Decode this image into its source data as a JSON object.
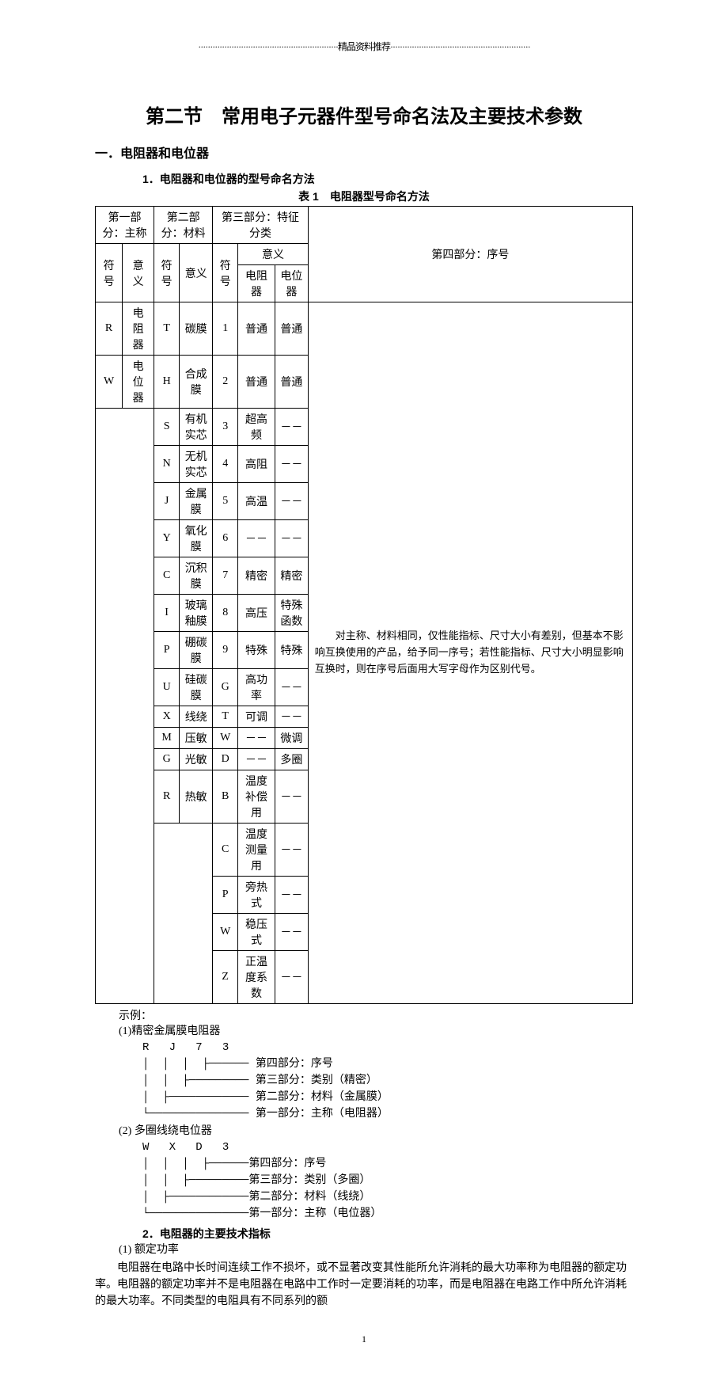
{
  "header_line": "···························································精品资料推荐···························································",
  "section_title": "第二节　常用电子元器件型号命名法及主要技术参数",
  "sub_heading": "一．电阻器和电位器",
  "numbered_heading_1": "1．电阻器和电位器的型号命名方法",
  "table_caption": "表 1　电阻器型号命名方法",
  "col_headers": {
    "part1": "第一部分：主称",
    "part2": "第二部分：材料",
    "part3": "第三部分：特征分类",
    "part4": "第四部分：序号",
    "symbol": "符号",
    "meaning": "意义",
    "meaning_sub": "意义",
    "resistor": "电阻器",
    "potentiometer": "电位器"
  },
  "part1_rows": [
    {
      "sym": "R",
      "mean": "电阻器"
    },
    {
      "sym": "W",
      "mean": "电位器"
    }
  ],
  "part2_rows": [
    {
      "sym": "T",
      "mean": "碳膜"
    },
    {
      "sym": "H",
      "mean": "合成膜"
    },
    {
      "sym": "S",
      "mean": "有机实芯"
    },
    {
      "sym": "N",
      "mean": "无机实芯"
    },
    {
      "sym": "J",
      "mean": "金属膜"
    },
    {
      "sym": "Y",
      "mean": "氧化膜"
    },
    {
      "sym": "C",
      "mean": "沉积膜"
    },
    {
      "sym": "I",
      "mean": "玻璃釉膜"
    },
    {
      "sym": "P",
      "mean": "硼碳膜"
    },
    {
      "sym": "U",
      "mean": "硅碳膜"
    },
    {
      "sym": "X",
      "mean": "线绕"
    },
    {
      "sym": "M",
      "mean": "压敏"
    },
    {
      "sym": "G",
      "mean": "光敏"
    },
    {
      "sym": "R",
      "mean": "热敏"
    }
  ],
  "part3_rows": [
    {
      "sym": "1",
      "res": "普通",
      "pot": "普通"
    },
    {
      "sym": "2",
      "res": "普通",
      "pot": "普通"
    },
    {
      "sym": "3",
      "res": "超高频",
      "pot": "－－"
    },
    {
      "sym": "4",
      "res": "高阻",
      "pot": "－－"
    },
    {
      "sym": "5",
      "res": "高温",
      "pot": "－－"
    },
    {
      "sym": "6",
      "res": "－－",
      "pot": "－－"
    },
    {
      "sym": "7",
      "res": "精密",
      "pot": "精密"
    },
    {
      "sym": "8",
      "res": "高压",
      "pot": "特殊函数"
    },
    {
      "sym": "9",
      "res": "特殊",
      "pot": "特殊"
    },
    {
      "sym": "G",
      "res": "高功率",
      "pot": "－－"
    },
    {
      "sym": "T",
      "res": "可调",
      "pot": "－－"
    },
    {
      "sym": "W",
      "res": "－－",
      "pot": "微调"
    },
    {
      "sym": "D",
      "res": "－－",
      "pot": "多圈"
    },
    {
      "sym": "B",
      "res": "温度补偿用",
      "pot": "－－"
    },
    {
      "sym": "C",
      "res": "温度测量用",
      "pot": "－－"
    },
    {
      "sym": "P",
      "res": "旁热式",
      "pot": "－－"
    },
    {
      "sym": "W",
      "res": "稳压式",
      "pot": "－－"
    },
    {
      "sym": "Z",
      "res": "正温度系数",
      "pot": "－－"
    }
  ],
  "part4_text": "　　对主称、材料相同，仅性能指标、尺寸大小有差别，但基本不影响互换使用的产品，给予同一序号；若性能指标、尺寸大小明显影响互换时，则在序号后面用大写字母作为区别代号。",
  "example_label": "示例：",
  "example1_title": "(1)精密金属膜电阻器",
  "example1_diagram": "R   J   7   3\n│  │  │  ├────── 第四部分：序号\n│  │  ├───────── 第三部分：类别（精密）\n│  ├──────────── 第二部分：材料（金属膜）\n└─────────────── 第一部分：主称（电阻器）",
  "example2_title": "(2) 多圈线绕电位器",
  "example2_diagram": "W   X   D   3\n│  │  │  ├──────第四部分：序号\n│  │  ├─────────第三部分：类别（多圈）\n│  ├────────────第二部分：材料（线绕）\n└───────────────第一部分：主称（电位器）",
  "numbered_heading_2": "2．电阻器的主要技术指标",
  "spec_1": "(1) 额定功率",
  "body_p1": "电阻器在电路中长时间连续工作不损坏，或不显著改变其性能所允许消耗的最大功率称为电阻器的额定功率。电阻器的额定功率并不是电阻器在电路中工作时一定要消耗的功率，而是电阻器在电路工作中所允许消耗的最大功率。不同类型的电阻具有不同系列的额",
  "page_num": "1"
}
